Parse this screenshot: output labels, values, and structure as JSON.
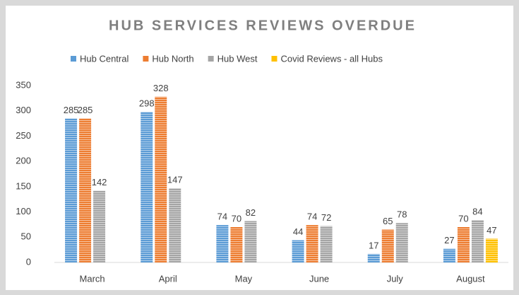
{
  "chart_data": {
    "type": "bar",
    "title": "HUB SERVICES REVIEWS OVERDUE",
    "categories": [
      "March",
      "April",
      "May",
      "June",
      "July",
      "August"
    ],
    "series": [
      {
        "name": "Hub Central",
        "color": "#5b9bd5",
        "values": [
          285,
          298,
          74,
          44,
          17,
          27
        ]
      },
      {
        "name": "Hub North",
        "color": "#ed7d31",
        "values": [
          285,
          328,
          70,
          74,
          65,
          70
        ]
      },
      {
        "name": "Hub West",
        "color": "#a5a5a5",
        "values": [
          142,
          147,
          82,
          72,
          78,
          84
        ]
      },
      {
        "name": "Covid Reviews - all Hubs",
        "color": "#ffc000",
        "values": [
          null,
          null,
          null,
          null,
          null,
          47
        ]
      }
    ],
    "ylim": [
      0,
      350
    ],
    "yticks": [
      0,
      50,
      100,
      150,
      200,
      250,
      300,
      350
    ],
    "grid": false,
    "legend": "top"
  }
}
